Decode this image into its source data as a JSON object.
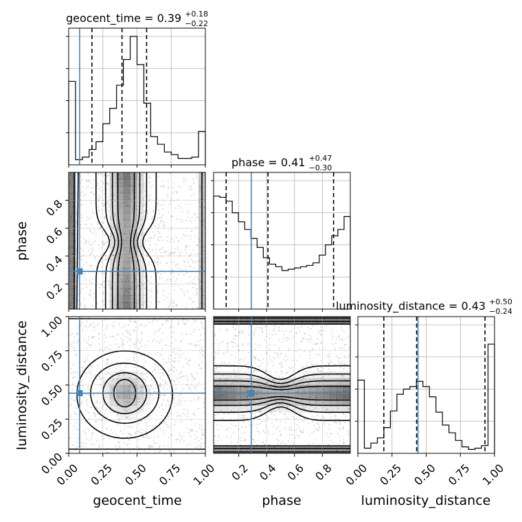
{
  "chart_data": {
    "type": "corner",
    "parameters": [
      "geocent_time",
      "phase",
      "luminosity_distance"
    ],
    "truths": {
      "geocent_time": 0.08,
      "phase": 0.29,
      "luminosity_distance": 0.44
    },
    "titles": [
      {
        "param": "geocent_time",
        "prefix": "geocent_time = 0.39",
        "sup": "+0.18",
        "sub": "−0.22",
        "median": 0.39,
        "lower": 0.17,
        "upper": 0.57
      },
      {
        "param": "phase",
        "prefix": "phase = 0.41",
        "sup": "+0.47",
        "sub": "−0.30",
        "median": 0.41,
        "lower": 0.11,
        "upper": 0.88
      },
      {
        "param": "luminosity_distance",
        "prefix": "luminosity_distance = 0.43",
        "sup": "+0.50",
        "sub": "−0.24",
        "median": 0.43,
        "lower": 0.19,
        "upper": 0.93
      }
    ],
    "axes": {
      "geocent_time": {
        "range": [
          0,
          1
        ],
        "ticks": [
          0,
          0.25,
          0.5,
          0.75,
          1
        ],
        "tick_labels": [
          "0.00",
          "0.25",
          "0.50",
          "0.75",
          "1.00"
        ],
        "label": "geocent_time"
      },
      "phase": {
        "range": [
          0.02,
          1
        ],
        "ticks": [
          0.2,
          0.4,
          0.6,
          0.8
        ],
        "tick_labels": [
          "0.2",
          "0.4",
          "0.6",
          "0.8"
        ],
        "label": "phase"
      },
      "luminosity_distance": {
        "range": [
          0,
          1
        ],
        "ticks": [
          0,
          0.25,
          0.5,
          0.75,
          1
        ],
        "tick_labels": [
          "0.00",
          "0.25",
          "0.50",
          "0.75",
          "1.00"
        ],
        "label": "luminosity_distance"
      }
    },
    "histograms": {
      "geocent_time": [
        0.65,
        0.04,
        0.06,
        0.12,
        0.18,
        0.32,
        0.44,
        0.62,
        0.82,
        1.0,
        0.78,
        0.48,
        0.22,
        0.16,
        0.1,
        0.08,
        0.05,
        0.05,
        0.06,
        0.26
      ],
      "phase": [
        0.88,
        0.87,
        0.84,
        0.75,
        0.68,
        0.62,
        0.55,
        0.48,
        0.4,
        0.35,
        0.33,
        0.3,
        0.31,
        0.32,
        0.33,
        0.34,
        0.36,
        0.42,
        0.5,
        0.57,
        0.62,
        0.72
      ],
      "luminosity_distance": [
        0.57,
        0.04,
        0.08,
        0.12,
        0.2,
        0.33,
        0.46,
        0.5,
        0.52,
        0.56,
        0.52,
        0.44,
        0.32,
        0.22,
        0.16,
        0.1,
        0.05,
        0.03,
        0.04,
        0.06,
        0.85
      ]
    },
    "contours": {
      "phase_vs_geocent_time": {
        "x": "geocent_time",
        "y": "phase",
        "levels": 4
      },
      "luminosity_distance_vs_geocent_time": {
        "x": "geocent_time",
        "y": "luminosity_distance",
        "levels": 4
      },
      "luminosity_distance_vs_phase": {
        "x": "phase",
        "y": "luminosity_distance",
        "levels": 4
      }
    },
    "colors": {
      "truth": "#4682b4",
      "histogram": "#000000",
      "quantile": "#000000",
      "grid": "#b0b0b0",
      "density": "#000000"
    },
    "grid": true,
    "legend": "none"
  }
}
